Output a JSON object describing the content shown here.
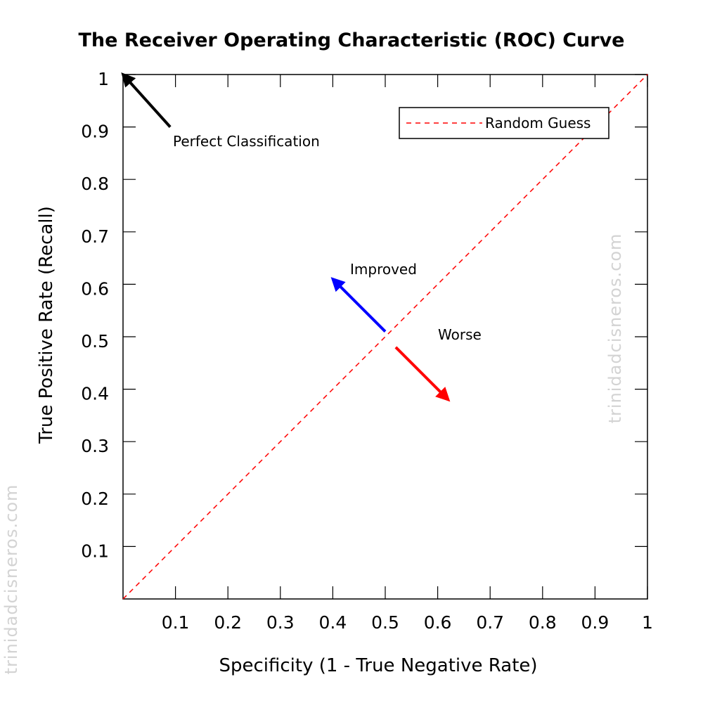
{
  "chart_data": {
    "type": "line",
    "title": "The Receiver Operating Characteristic (ROC) Curve",
    "xlabel": "Specificity (1 - True Negative Rate)",
    "ylabel": "True Positive Rate (Recall)",
    "xlim": [
      0,
      1
    ],
    "ylim": [
      0,
      1
    ],
    "xticks": [
      0.1,
      0.2,
      0.3,
      0.4,
      0.5,
      0.6,
      0.7,
      0.8,
      0.9,
      1
    ],
    "yticks": [
      0.1,
      0.2,
      0.3,
      0.4,
      0.5,
      0.6,
      0.7,
      0.8,
      0.9,
      1
    ],
    "x_tick_labels": [
      "0.1",
      "0.2",
      "0.3",
      "0.4",
      "0.5",
      "0.6",
      "0.7",
      "0.8",
      "0.9",
      "1"
    ],
    "y_tick_labels": [
      "0.1",
      "0.2",
      "0.3",
      "0.4",
      "0.5",
      "0.6",
      "0.7",
      "0.8",
      "0.9",
      "1"
    ],
    "grid": false,
    "legend_position": "top-right",
    "series": [
      {
        "name": "Random Guess",
        "x": [
          0,
          1
        ],
        "y": [
          0,
          1
        ],
        "color": "#ff0000",
        "style": "dashed"
      }
    ],
    "annotations": [
      {
        "text": "Perfect Classification",
        "arrow_from": [
          0.09,
          0.9
        ],
        "arrow_to": [
          0,
          1
        ],
        "color": "#000000"
      },
      {
        "text": "Improved",
        "arrow_from": [
          0.5,
          0.51
        ],
        "arrow_to": [
          0.4,
          0.61
        ],
        "color": "#0000ff"
      },
      {
        "text": "Worse",
        "arrow_from": [
          0.52,
          0.48
        ],
        "arrow_to": [
          0.62,
          0.38
        ],
        "color": "#ff0000"
      }
    ]
  },
  "watermark": "trinidadcisneros.com"
}
